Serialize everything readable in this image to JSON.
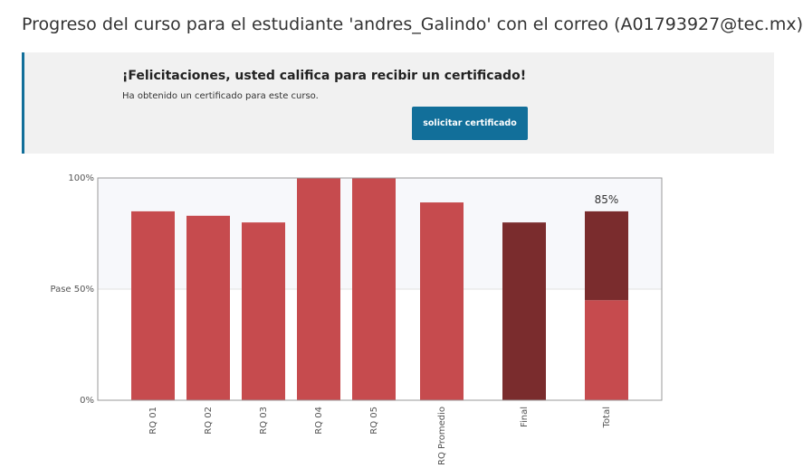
{
  "header": {
    "title": "Progreso del curso para el estudiante 'andres_Galindo' con el correo (A01793927@tec.mx)"
  },
  "banner": {
    "headline": "¡Felicitaciones, usted califica para recibir un certificado!",
    "text": "Ha obtenido un certificado para este curso.",
    "button": "solicitar certificado"
  },
  "chart_data": {
    "type": "bar",
    "categories": [
      "RQ 01",
      "RQ 02",
      "RQ 03",
      "RQ 04",
      "RQ 05",
      "RQ Promedio",
      "Final",
      "Total"
    ],
    "series": [
      {
        "color": "#c64b4e",
        "values": [
          85,
          83,
          80,
          100,
          100,
          89,
          null,
          45
        ]
      },
      {
        "color": "#7a2c2d",
        "values": [
          null,
          null,
          null,
          null,
          null,
          null,
          80,
          40
        ]
      }
    ],
    "totals": [
      null,
      null,
      null,
      null,
      null,
      null,
      null,
      85
    ],
    "total_labels": [
      null,
      null,
      null,
      null,
      null,
      null,
      null,
      "85%"
    ],
    "stacked": true,
    "ylim": [
      0,
      100
    ],
    "yticks": [
      {
        "value": 0,
        "label": "0%"
      },
      {
        "value": 50,
        "label": "Pase 50%"
      },
      {
        "value": 100,
        "label": "100%"
      }
    ]
  }
}
